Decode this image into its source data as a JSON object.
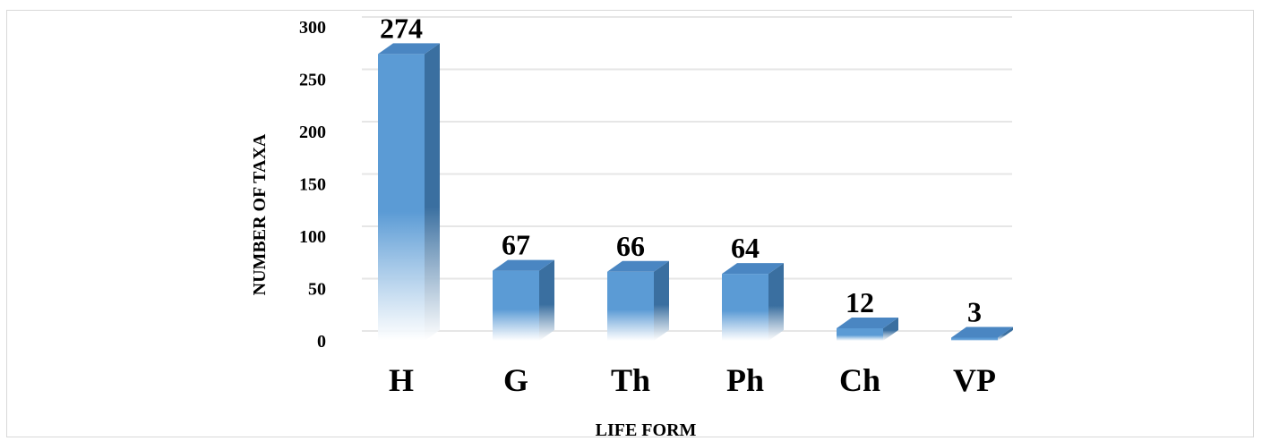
{
  "chart_data": {
    "type": "bar",
    "style": "3d-column",
    "categories": [
      "H",
      "G",
      "Th",
      "Ph",
      "Ch",
      "VP"
    ],
    "values": [
      274,
      67,
      66,
      64,
      12,
      3
    ],
    "data_labels": [
      "274",
      "67",
      "66",
      "64",
      "12",
      "3"
    ],
    "xlabel": "LIFE FORM",
    "ylabel": "NUMBER OF TAXA",
    "ylim": [
      0,
      300
    ],
    "yticks": [
      "0",
      "50",
      "100",
      "150",
      "200",
      "250",
      "300"
    ],
    "grid": true,
    "legend": "none",
    "colors": {
      "bar_front": "#5b9bd5",
      "bar_side": "#3a6fa0",
      "bar_top": "#4a86c2",
      "grid": "#e6e6e6",
      "border": "#d9d9d9"
    }
  }
}
